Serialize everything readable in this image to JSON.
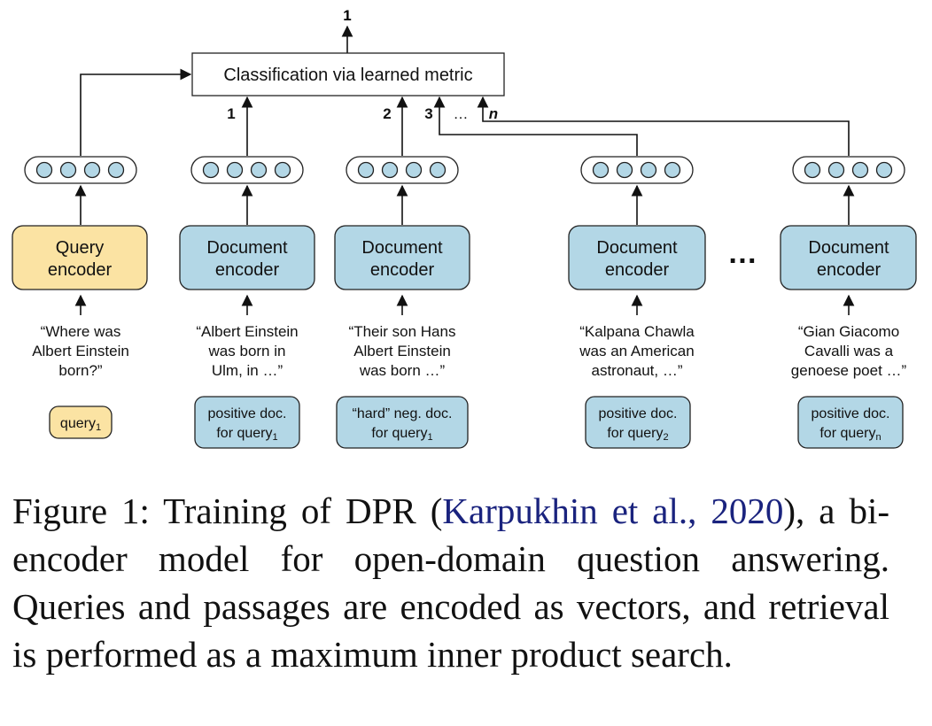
{
  "top_label": "1",
  "classifier": {
    "label": "Classification via learned metric"
  },
  "arrow_labels": {
    "a1": "1",
    "a2": "2",
    "a3": "3",
    "ellipsis": "…",
    "an": "n"
  },
  "encoders": [
    {
      "line1": "Query",
      "line2": "encoder",
      "kind": "query"
    },
    {
      "line1": "Document",
      "line2": "encoder",
      "kind": "document"
    },
    {
      "line1": "Document",
      "line2": "encoder",
      "kind": "document"
    },
    {
      "line1": "Document",
      "line2": "encoder",
      "kind": "document"
    },
    {
      "line1": "Document",
      "line2": "encoder",
      "kind": "document"
    }
  ],
  "between_dots": "…",
  "texts": [
    {
      "l1": "“Where was",
      "l2": "Albert Einstein",
      "l3": "born?”"
    },
    {
      "l1": "“Albert Einstein",
      "l2": "was born in",
      "l3": "Ulm, in …”"
    },
    {
      "l1": "“Their son Hans",
      "l2": "Albert Einstein",
      "l3": "was born …”"
    },
    {
      "l1": "“Kalpana Chawla",
      "l2": "was an American",
      "l3": "astronaut, …”"
    },
    {
      "l1": "“Gian Giacomo",
      "l2": "Cavalli was a",
      "l3": "genoese poet …”"
    }
  ],
  "tags": [
    {
      "l1": "query",
      "sub": "1"
    },
    {
      "l1": "positive doc.",
      "l2": "for query",
      "sub": "1"
    },
    {
      "l1": "“hard” neg. doc.",
      "l2": "for query",
      "sub": "1"
    },
    {
      "l1": "positive doc.",
      "l2": "for query",
      "sub": "2"
    },
    {
      "l1": "positive doc.",
      "l2": "for query",
      "sub": "n"
    }
  ],
  "caption": {
    "prefix": "Figure 1:  Training of DPR (",
    "citation": "Karpukhin et al., 2020",
    "suffix": "), a bi-encoder model for open-domain question answering. Queries and passages are encoded as vectors, and retrieval is performed as a maximum inner product search."
  },
  "colors": {
    "query_fill": "#fbe3a3",
    "doc_fill": "#b3d7e6",
    "node_fill": "#b3d7e6",
    "stroke": "#1f1f1f",
    "citation": "#1a237e"
  }
}
